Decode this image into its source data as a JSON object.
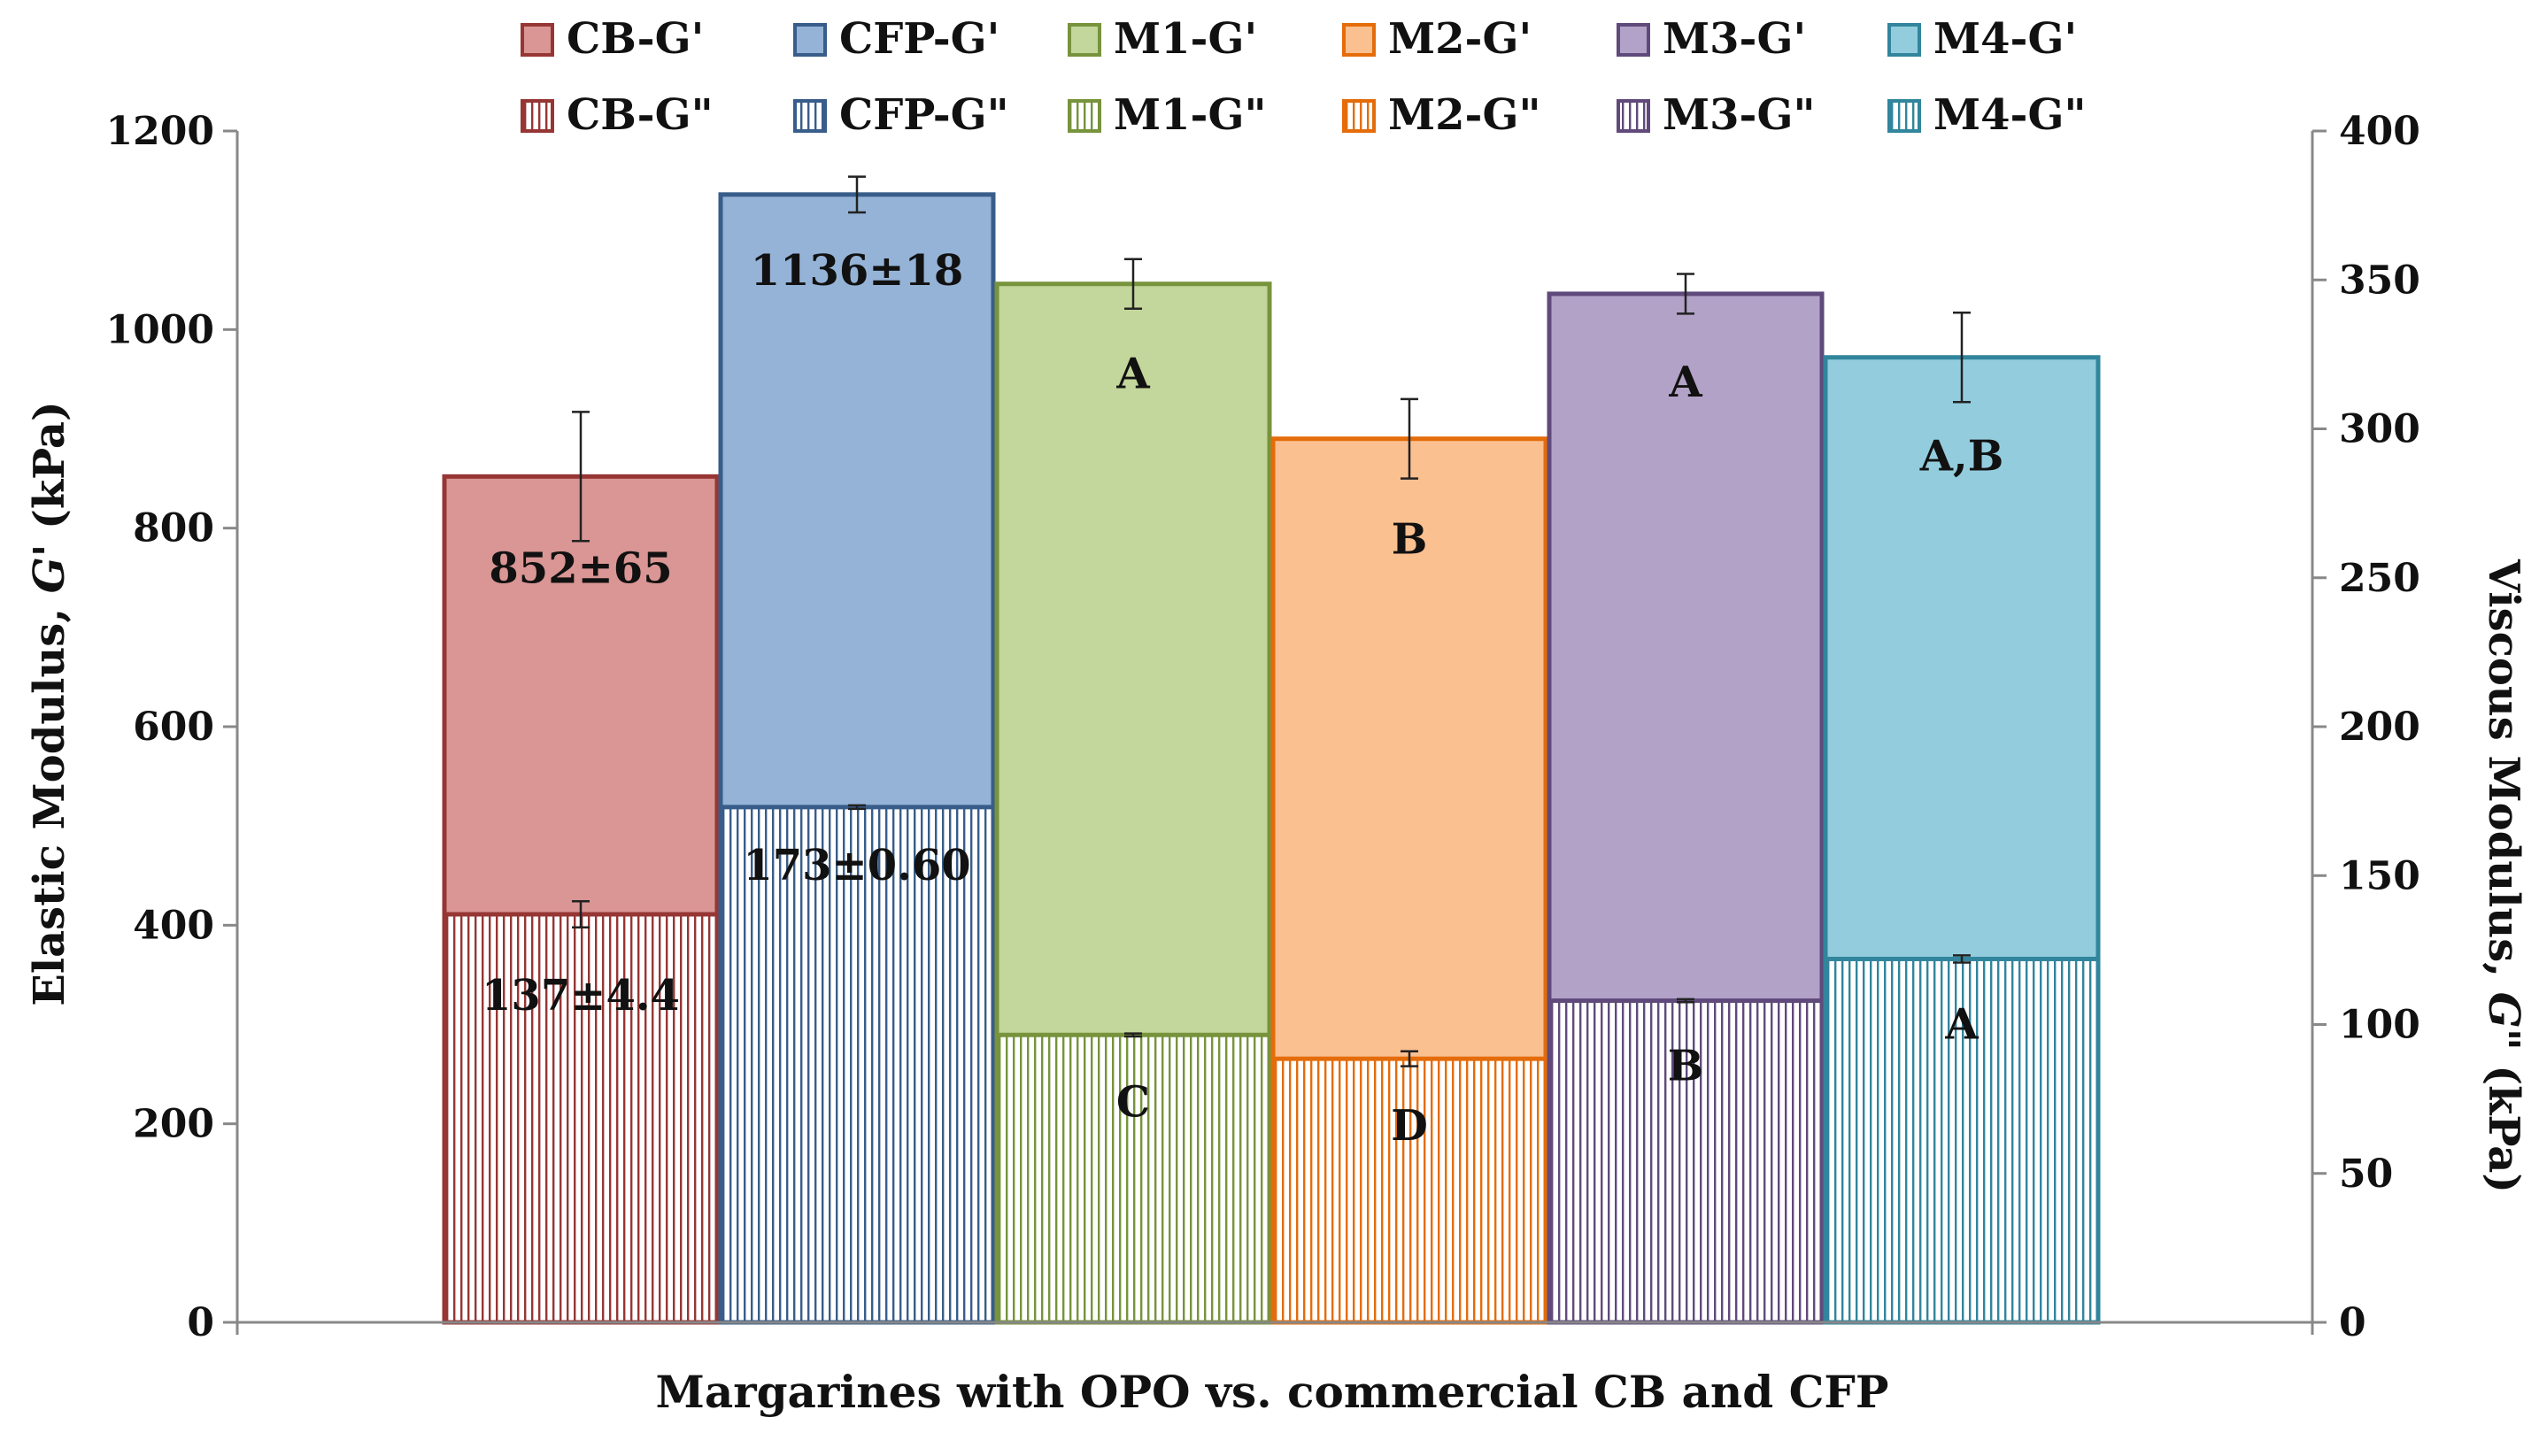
{
  "chart_data": {
    "type": "bar",
    "xlabel": "Margarines with OPO vs. commercial CB and CFP",
    "ylabel": "Elastic Modulus, G' (kPa)",
    "y2label": "Viscous Modulus, G\" (kPa)",
    "ylabel_parts": {
      "pre": "Elastic Modulus, ",
      "var": "G'",
      "post": " (kPa)"
    },
    "y2label_parts": {
      "pre": "Viscous Modulus, ",
      "var": "G\"",
      "post": " (kPa)"
    },
    "ylim": [
      0,
      1200
    ],
    "y2lim": [
      0,
      400
    ],
    "yticks": [
      0,
      200,
      400,
      600,
      800,
      1000,
      1200
    ],
    "y2ticks": [
      0,
      50,
      100,
      150,
      200,
      250,
      300,
      350,
      400
    ],
    "grid": false,
    "legend_position": "top",
    "categories": [
      "CB",
      "CFP",
      "M1",
      "M2",
      "M3",
      "M4"
    ],
    "series": [
      {
        "name": "G'",
        "axis": "left",
        "values": [
          852,
          1136,
          1046,
          890,
          1036,
          972
        ],
        "errors": [
          65,
          18,
          25,
          40,
          20,
          45
        ],
        "labels": [
          "852±65",
          "1136±18",
          "A",
          "B",
          "A",
          "A,B"
        ]
      },
      {
        "name": "G\"",
        "axis": "right",
        "values": [
          137,
          173,
          96.5,
          88.5,
          108,
          122
        ],
        "errors": [
          4.4,
          0.6,
          0.5,
          2.5,
          0.5,
          1.2
        ],
        "labels": [
          "137±4.4",
          "173±0.60",
          "C",
          "D",
          "B",
          "A"
        ]
      }
    ],
    "legend": [
      {
        "label": "CB-G'",
        "color": "#963634",
        "fill": "#D99694",
        "pattern": "solid"
      },
      {
        "label": "CFP-G'",
        "color": "#385D8A",
        "fill": "#95B3D7",
        "pattern": "solid"
      },
      {
        "label": "M1-G'",
        "color": "#77933C",
        "fill": "#C3D69B",
        "pattern": "solid"
      },
      {
        "label": "M2-G'",
        "color": "#E46C0A",
        "fill": "#FAC090",
        "pattern": "solid"
      },
      {
        "label": "M3-G'",
        "color": "#604A7B",
        "fill": "#B3A2C7",
        "pattern": "solid"
      },
      {
        "label": "M4-G'",
        "color": "#31859C",
        "fill": "#93CDDD",
        "pattern": "solid"
      },
      {
        "label": "CB-G\"",
        "color": "#963634",
        "fill": "#D99694",
        "pattern": "vertical"
      },
      {
        "label": "CFP-G\"",
        "color": "#385D8A",
        "fill": "#95B3D7",
        "pattern": "vertical"
      },
      {
        "label": "M1-G\"",
        "color": "#77933C",
        "fill": "#C3D69B",
        "pattern": "vertical"
      },
      {
        "label": "M2-G\"",
        "color": "#E46C0A",
        "fill": "#FAC090",
        "pattern": "vertical"
      },
      {
        "label": "M3-G\"",
        "color": "#604A7B",
        "fill": "#B3A2C7",
        "pattern": "vertical"
      },
      {
        "label": "M4-G\"",
        "color": "#31859C",
        "fill": "#93CDDD",
        "pattern": "vertical"
      }
    ]
  }
}
